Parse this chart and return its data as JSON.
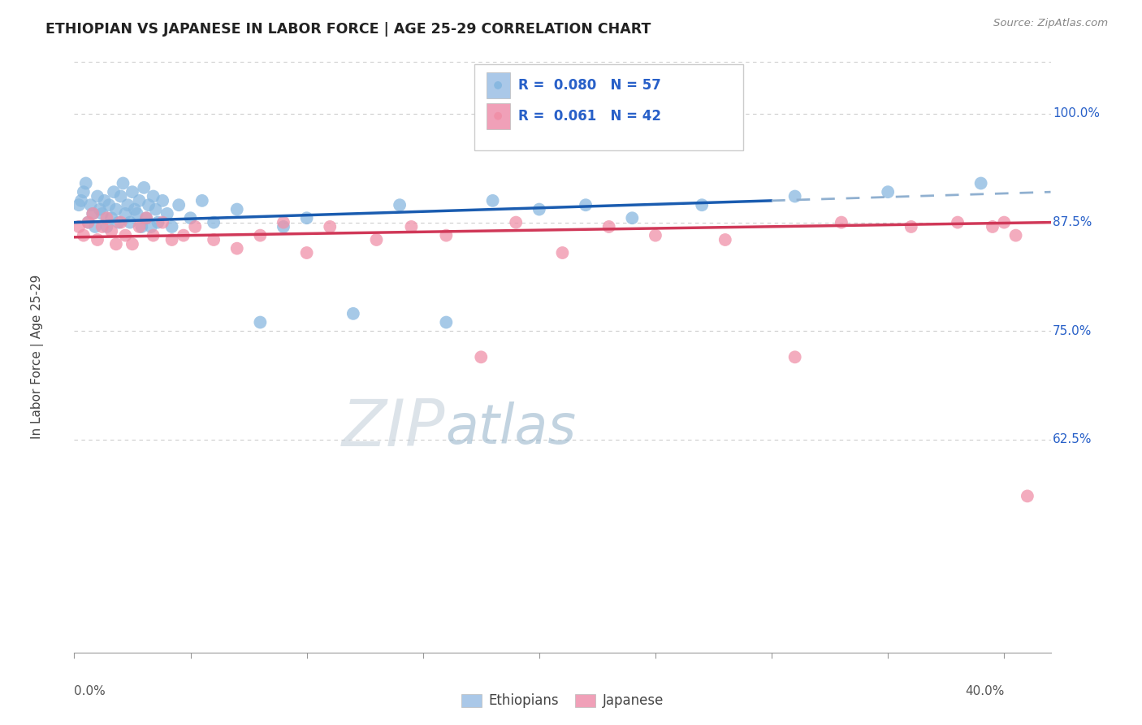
{
  "title": "ETHIOPIAN VS JAPANESE IN LABOR FORCE | AGE 25-29 CORRELATION CHART",
  "source_text": "Source: ZipAtlas.com",
  "ylabel": "In Labor Force | Age 25-29",
  "xlim": [
    0.0,
    0.42
  ],
  "ylim": [
    0.38,
    1.06
  ],
  "title_color": "#222222",
  "source_color": "#888888",
  "background_color": "#ffffff",
  "grid_color": "#cccccc",
  "watermark_color": "#c8d8ea",
  "R_ethiopian": 0.08,
  "N_ethiopian": 57,
  "R_japanese": 0.061,
  "N_japanese": 42,
  "legend_color_ethiopian": "#aac8e8",
  "legend_color_japanese": "#f0a0b8",
  "scatter_color_ethiopian": "#88b8e0",
  "scatter_color_japanese": "#f090a8",
  "trendline_color_ethiopian": "#1a5cb0",
  "trendline_color_japanese": "#d03858",
  "trendline_ext_color": "#90b0d0",
  "stat_label_color": "#2860c8",
  "ethiopian_x": [
    0.002,
    0.003,
    0.004,
    0.005,
    0.006,
    0.007,
    0.008,
    0.009,
    0.01,
    0.011,
    0.012,
    0.013,
    0.014,
    0.015,
    0.016,
    0.017,
    0.018,
    0.019,
    0.02,
    0.021,
    0.022,
    0.023,
    0.024,
    0.025,
    0.026,
    0.027,
    0.028,
    0.029,
    0.03,
    0.031,
    0.032,
    0.033,
    0.034,
    0.035,
    0.036,
    0.038,
    0.04,
    0.042,
    0.045,
    0.05,
    0.055,
    0.06,
    0.07,
    0.08,
    0.09,
    0.1,
    0.12,
    0.14,
    0.16,
    0.18,
    0.2,
    0.22,
    0.24,
    0.27,
    0.31,
    0.35,
    0.39
  ],
  "ethiopian_y": [
    0.895,
    0.9,
    0.91,
    0.92,
    0.875,
    0.895,
    0.885,
    0.87,
    0.905,
    0.89,
    0.885,
    0.9,
    0.87,
    0.895,
    0.88,
    0.91,
    0.89,
    0.875,
    0.905,
    0.92,
    0.885,
    0.895,
    0.875,
    0.91,
    0.89,
    0.885,
    0.9,
    0.87,
    0.915,
    0.88,
    0.895,
    0.87,
    0.905,
    0.89,
    0.875,
    0.9,
    0.885,
    0.87,
    0.895,
    0.88,
    0.9,
    0.875,
    0.89,
    0.76,
    0.87,
    0.88,
    0.77,
    0.895,
    0.76,
    0.9,
    0.89,
    0.895,
    0.88,
    0.895,
    0.905,
    0.91,
    0.92
  ],
  "japanese_x": [
    0.002,
    0.004,
    0.006,
    0.008,
    0.01,
    0.012,
    0.014,
    0.016,
    0.018,
    0.02,
    0.022,
    0.025,
    0.028,
    0.031,
    0.034,
    0.038,
    0.042,
    0.047,
    0.052,
    0.06,
    0.07,
    0.08,
    0.09,
    0.1,
    0.11,
    0.13,
    0.145,
    0.16,
    0.175,
    0.19,
    0.21,
    0.23,
    0.25,
    0.28,
    0.31,
    0.33,
    0.36,
    0.38,
    0.395,
    0.4,
    0.405,
    0.41
  ],
  "japanese_y": [
    0.87,
    0.86,
    0.875,
    0.885,
    0.855,
    0.87,
    0.88,
    0.865,
    0.85,
    0.875,
    0.86,
    0.85,
    0.87,
    0.88,
    0.86,
    0.875,
    0.855,
    0.86,
    0.87,
    0.855,
    0.845,
    0.86,
    0.875,
    0.84,
    0.87,
    0.855,
    0.87,
    0.86,
    0.72,
    0.875,
    0.84,
    0.87,
    0.86,
    0.855,
    0.72,
    0.875,
    0.87,
    0.875,
    0.87,
    0.875,
    0.86,
    0.56
  ],
  "trendline_eth_x0": 0.0,
  "trendline_eth_y0": 0.875,
  "trendline_eth_x1": 0.3,
  "trendline_eth_y1": 0.9,
  "trendline_eth_dash_x1": 0.42,
  "trendline_eth_dash_y1": 0.91,
  "trendline_jap_x0": 0.0,
  "trendline_jap_y0": 0.858,
  "trendline_jap_x1": 0.42,
  "trendline_jap_y1": 0.875,
  "x_ticks_major": [
    0.0,
    0.05,
    0.1,
    0.15,
    0.2,
    0.25,
    0.3,
    0.35,
    0.4
  ],
  "ytick_positions": [
    1.0,
    0.875,
    0.75,
    0.625
  ],
  "ytick_labels": [
    "100.0%",
    "87.5%",
    "75.0%",
    "62.5%"
  ]
}
